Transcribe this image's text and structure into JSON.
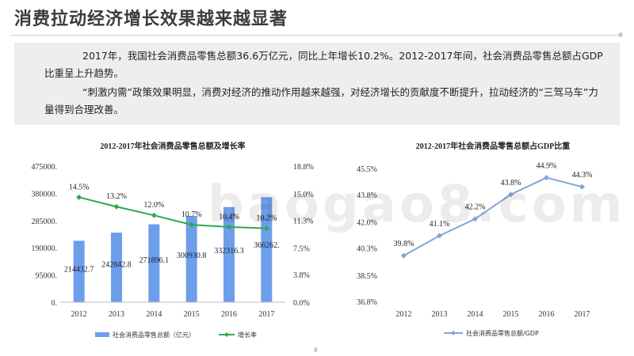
{
  "page": {
    "title": "消费拉动经济增长效果越来越显著",
    "paragraph_1": "2017年，我国社会消费品零售总额36.6万亿元，同比上年增长10.2%。2012-2017年间，社会消费品零售总额占GDP比重呈上升趋势。",
    "paragraph_2": "“刺激内需”政策效果明显，消费对经济的推动作用越来越强，对经济增长的贡献度不断提升，拉动经济的“三驾马车”力量得到合理改善。",
    "page_number": "4",
    "watermark": "baogao8.com"
  },
  "chart_data": [
    {
      "type": "bar",
      "title": "2012-2017年社会消费品零售总额及增长率",
      "categories": [
        "2012",
        "2013",
        "2014",
        "2015",
        "2016",
        "2017"
      ],
      "series": [
        {
          "name": "社会消费品零售总额（亿元）",
          "type": "bar",
          "axis": "left",
          "values": [
            214432.7,
            242842.8,
            271896.1,
            300930.8,
            332316.3,
            366262.3
          ],
          "labels": [
            "214432.7",
            "242842.8",
            "271896.1",
            "300930.8",
            "332316.3",
            "366262."
          ],
          "color": "#6d9eeb"
        },
        {
          "name": "增长率",
          "type": "line",
          "axis": "right",
          "values": [
            14.5,
            13.2,
            12.0,
            10.7,
            10.4,
            10.2
          ],
          "labels": [
            "14.5%",
            "13.2%",
            "12.0%",
            "10.7%",
            "10.4%",
            "10.2%"
          ],
          "color": "#2eaa4f"
        }
      ],
      "left_axis": {
        "ylim": [
          0,
          475000
        ],
        "ticks": [
          0,
          95000,
          190000,
          285000,
          380000,
          475000
        ],
        "tick_labels": [
          "0.",
          "95000.",
          "190000.",
          "285000.",
          "380000.",
          "475000."
        ]
      },
      "right_axis": {
        "ylim": [
          0,
          18.8
        ],
        "ticks": [
          0,
          3.8,
          7.5,
          11.3,
          15.0,
          18.8
        ],
        "tick_labels": [
          "0.0%",
          "3.8%",
          "7.5%",
          "11.3%",
          "15.0%",
          "18.8%"
        ]
      },
      "legend_position": "bottom",
      "grid": false
    },
    {
      "type": "line",
      "title": "2012-2017年社会消费品零售总额占GDP比重",
      "categories": [
        "2012",
        "2013",
        "2014",
        "2015",
        "2016",
        "2017"
      ],
      "series": [
        {
          "name": "社会消费品零售总额/GDP",
          "values": [
            39.8,
            41.1,
            42.2,
            43.8,
            44.9,
            44.3
          ],
          "labels": [
            "39.8%",
            "41.1%",
            "42.2%",
            "43.8%",
            "44.9%",
            "44.3%"
          ],
          "color": "#7da7d9"
        }
      ],
      "y_axis": {
        "ylim": [
          36.8,
          45.5
        ],
        "ticks": [
          36.8,
          38.5,
          40.3,
          42.0,
          43.8,
          45.5
        ],
        "tick_labels": [
          "36.8%",
          "38.5%",
          "40.3%",
          "42.0%",
          "43.8%",
          "45.5%"
        ]
      },
      "legend_position": "bottom",
      "grid": false
    }
  ]
}
